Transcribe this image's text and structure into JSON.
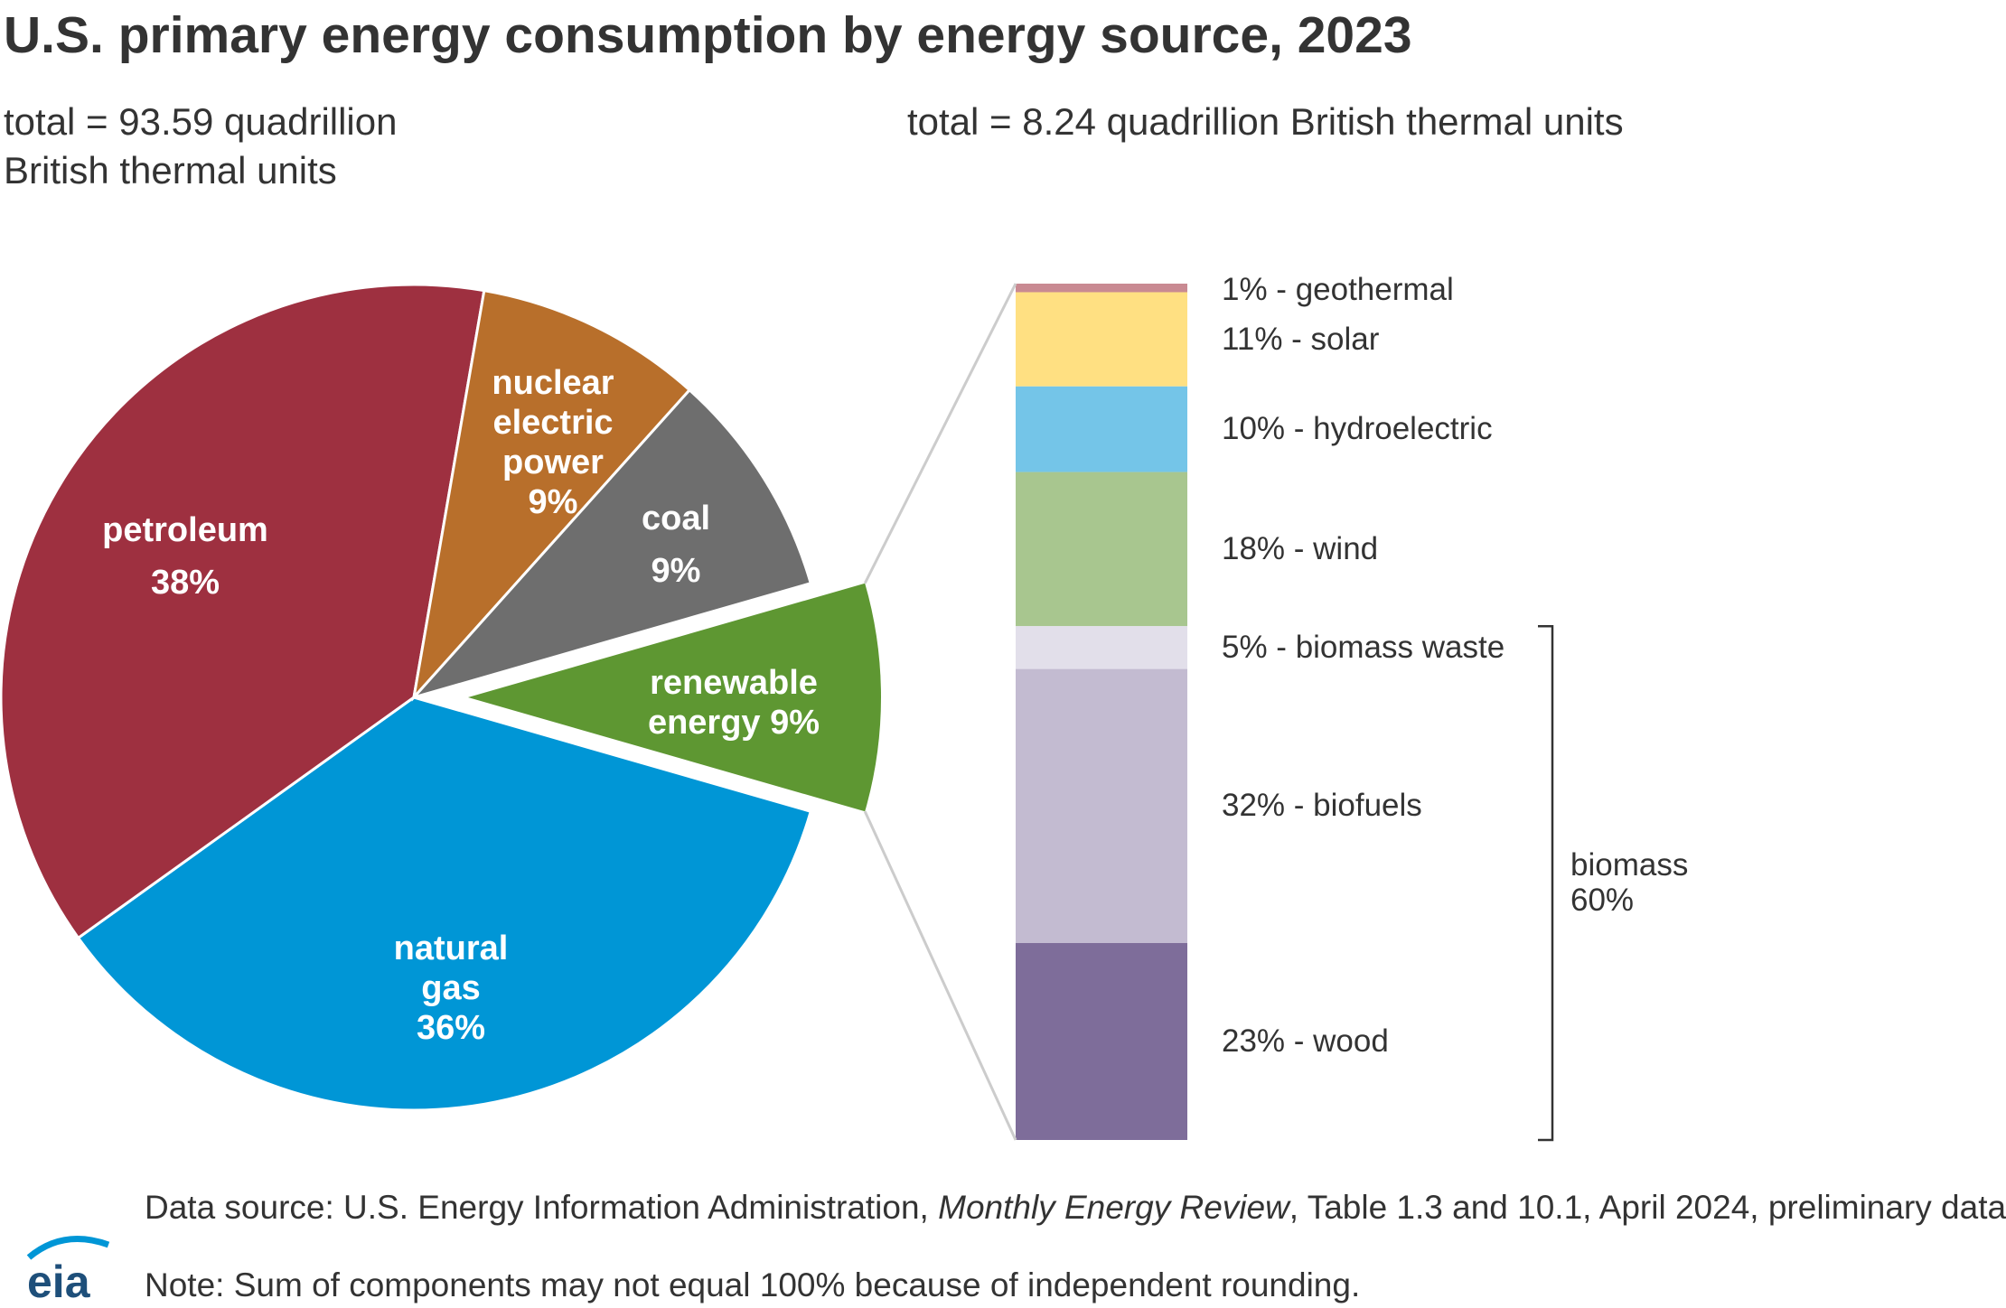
{
  "title": "U.S. primary energy consumption by energy source, 2023",
  "chart_data": [
    {
      "type": "pie",
      "subtitle": "total = 93.59 quadrillion British thermal units",
      "categories": [
        "renewable energy",
        "natural gas",
        "petroleum",
        "nuclear electric power",
        "coal"
      ],
      "values": [
        9,
        36,
        38,
        9,
        9
      ],
      "value_labels": [
        "9%",
        "36%",
        "38%",
        "9%",
        "9%"
      ],
      "colors": [
        "#5e9732",
        "#0096d6",
        "#9e3040",
        "#b86f2b",
        "#6e6e6e"
      ],
      "exploded": "renewable energy"
    },
    {
      "type": "stacked-bar",
      "subtitle": "total = 8.24 quadrillion British thermal units",
      "categories": [
        "geothermal",
        "solar",
        "hydroelectric",
        "wind",
        "biomass waste",
        "biofuels",
        "wood"
      ],
      "values": [
        1,
        11,
        10,
        18,
        5,
        32,
        23
      ],
      "value_labels": [
        "1% - geothermal",
        "11% - solar",
        "10% - hydroelectric",
        "18% - wind",
        "5% - biomass waste",
        "32% - biofuels",
        "23% - wood"
      ],
      "colors": [
        "#c98a92",
        "#ffe082",
        "#74c5e8",
        "#a8c68f",
        "#e2dfea",
        "#c3bbd1",
        "#7e6d9a"
      ],
      "group": {
        "name": "biomass",
        "value": 60,
        "value_label": "60%"
      }
    }
  ],
  "source": {
    "prefix": "Data source: U.S. Energy Information Administration,",
    "italic": "Monthly Energy Review",
    "suffix": ", Table 1.3 and 10.1, April 2024, preliminary data"
  },
  "note": "Note: Sum of components may not equal 100% because of independent rounding.",
  "logo": "eia"
}
